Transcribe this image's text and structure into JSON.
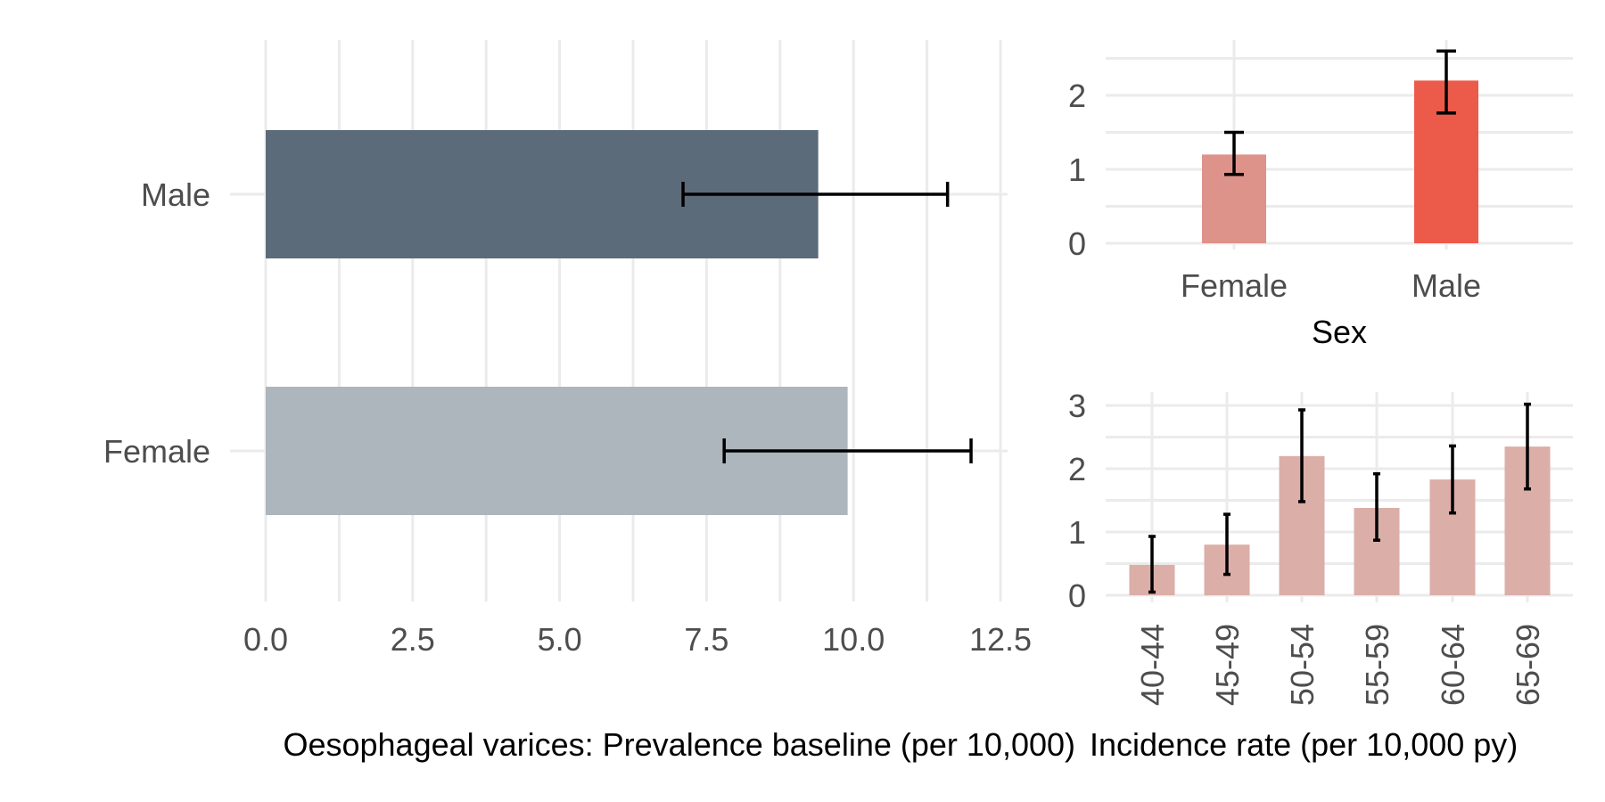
{
  "chart_data": [
    {
      "id": "prevalence",
      "type": "bar",
      "orientation": "horizontal",
      "categories": [
        "Male",
        "Female"
      ],
      "values": [
        9.4,
        9.9
      ],
      "error_low": [
        7.1,
        7.8
      ],
      "error_high": [
        11.6,
        12.0
      ],
      "colors": [
        "#5c6b7a",
        "#adb5bd"
      ],
      "xlabel": "Oesophageal varices: Prevalence baseline (per 10,000)",
      "xlim": [
        0,
        12.5
      ],
      "x_ticks": [
        "0.0",
        "2.5",
        "5.0",
        "7.5",
        "10.0",
        "12.5"
      ],
      "grid": true
    },
    {
      "id": "incidence-sex",
      "type": "bar",
      "categories": [
        "Female",
        "Male"
      ],
      "values": [
        1.2,
        2.2
      ],
      "error_low": [
        0.93,
        1.76
      ],
      "error_high": [
        1.5,
        2.6
      ],
      "colors": [
        "#dd928a",
        "#ec5a4a"
      ],
      "xlabel": "Sex",
      "ylim": [
        0,
        2.6
      ],
      "y_ticks": [
        "0",
        "1",
        "2"
      ],
      "grid": true
    },
    {
      "id": "incidence-age",
      "type": "bar",
      "categories": [
        "40-44",
        "45-49",
        "50-54",
        "55-59",
        "60-64",
        "65-69"
      ],
      "values": [
        0.48,
        0.8,
        2.2,
        1.38,
        1.83,
        2.35
      ],
      "error_low": [
        0.05,
        0.33,
        1.48,
        0.87,
        1.3,
        1.68
      ],
      "error_high": [
        0.93,
        1.28,
        2.93,
        1.92,
        2.36,
        3.02
      ],
      "colors": [
        "#dbaea8"
      ],
      "xlabel": "Incidence rate (per 10,000 py)",
      "ylim": [
        0,
        3.1
      ],
      "y_ticks": [
        "0",
        "1",
        "2",
        "3"
      ],
      "grid": true
    }
  ]
}
